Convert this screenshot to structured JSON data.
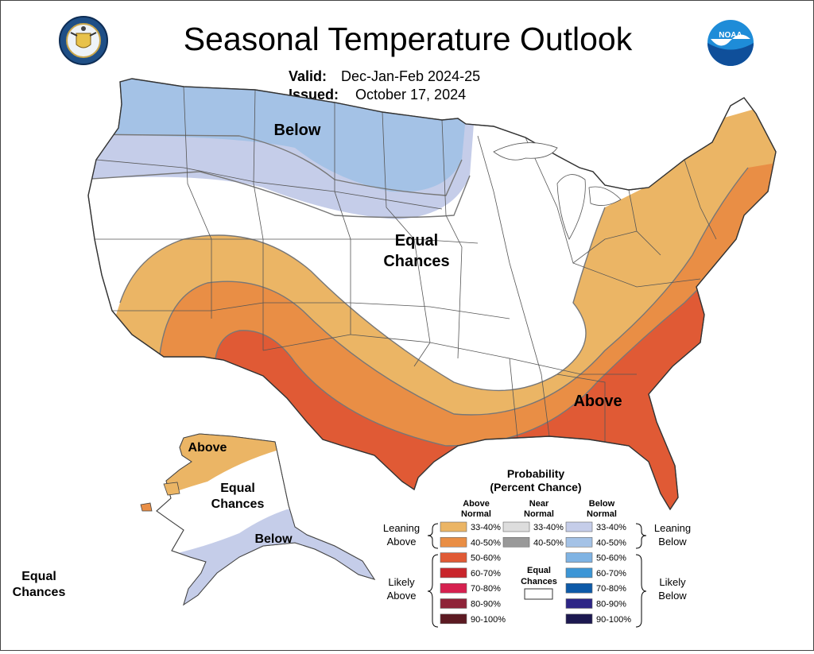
{
  "header": {
    "title": "Seasonal Temperature Outlook",
    "valid_label": "Valid:",
    "valid_value": "Dec-Jan-Feb 2024-25",
    "issued_label": "Issued:",
    "issued_value": "October 17, 2024"
  },
  "logos": {
    "left": "department-of-commerce-seal",
    "right": "noaa-logo",
    "noaa_text": "NOAA"
  },
  "map_labels": {
    "below": "Below",
    "equal": "Equal",
    "chances": "Chances",
    "above": "Above",
    "ak_above": "Above",
    "ak_equal": "Equal",
    "ak_chances": "Chances",
    "ak_below": "Below",
    "hi_equal": "Equal",
    "hi_chances": "Chances"
  },
  "colors": {
    "below_33_40": "#c5cde9",
    "below_40_50": "#a4c2e6",
    "above_33_40": "#ebb565",
    "above_40_50": "#e98e45",
    "above_50_60": "#e05a35"
  },
  "legend": {
    "title_1": "Probability",
    "title_2": "(Percent Chance)",
    "col_above_1": "Above",
    "col_above_2": "Normal",
    "col_near_1": "Near",
    "col_near_2": "Normal",
    "col_below_1": "Below",
    "col_below_2": "Normal",
    "leaning_1": "Leaning",
    "leaning_above": "Above",
    "leaning_below": "Below",
    "likely_1": "Likely",
    "likely_above": "Above",
    "likely_below": "Below",
    "equal_1": "Equal",
    "equal_2": "Chances",
    "above": [
      {
        "label": "33-40%",
        "color": "#ebb565"
      },
      {
        "label": "40-50%",
        "color": "#e98e45"
      },
      {
        "label": "50-60%",
        "color": "#e05a35"
      },
      {
        "label": "60-70%",
        "color": "#c9252b"
      },
      {
        "label": "70-80%",
        "color": "#d6204f"
      },
      {
        "label": "80-90%",
        "color": "#8f2338"
      },
      {
        "label": "90-100%",
        "color": "#5c1a22"
      }
    ],
    "near": [
      {
        "label": "33-40%",
        "color": "#dddddd"
      },
      {
        "label": "40-50%",
        "color": "#999999"
      }
    ],
    "below": [
      {
        "label": "33-40%",
        "color": "#c5cde9"
      },
      {
        "label": "40-50%",
        "color": "#a4c2e6"
      },
      {
        "label": "50-60%",
        "color": "#7fb3e3"
      },
      {
        "label": "60-70%",
        "color": "#3c96d6"
      },
      {
        "label": "70-80%",
        "color": "#0d5aa8"
      },
      {
        "label": "80-90%",
        "color": "#2d2586"
      },
      {
        "label": "90-100%",
        "color": "#1c1850"
      }
    ]
  }
}
